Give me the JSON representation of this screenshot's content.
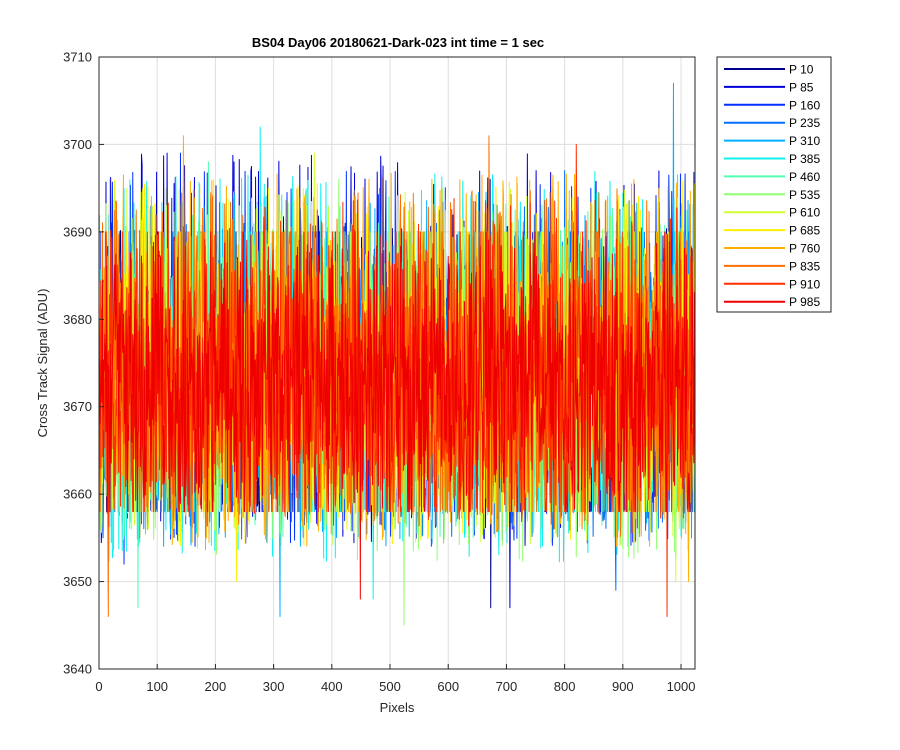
{
  "chart_data": {
    "type": "line",
    "title": "BS04 Day06 20180621-Dark-023 int time = 1 sec",
    "xlabel": "Pixels",
    "ylabel": "Cross Track Signal (ADU)",
    "xlim": [
      0,
      1024
    ],
    "ylim": [
      3640,
      3710
    ],
    "xticks": [
      0,
      100,
      200,
      300,
      400,
      500,
      600,
      700,
      800,
      900,
      1000
    ],
    "yticks": [
      3640,
      3650,
      3660,
      3670,
      3680,
      3690,
      3700,
      3710
    ],
    "grid": true,
    "legend_position": "outside-top-right",
    "noise": {
      "mean": 3673,
      "typical_low": 3658,
      "typical_high": 3690
    },
    "series": [
      {
        "name": "P 10",
        "color": "#00008f",
        "min": 3658,
        "max": 3692,
        "spike_hi": {
          "x": 672,
          "y": 3696
        },
        "spike_lo": {
          "x": 672,
          "y": 3647
        }
      },
      {
        "name": "P 85",
        "color": "#0000d9",
        "min": 3654,
        "max": 3699,
        "spike_hi": {
          "x": 117,
          "y": 3699
        },
        "spike_lo": {
          "x": 705,
          "y": 3647
        }
      },
      {
        "name": "P 160",
        "color": "#0030ff",
        "min": 3654,
        "max": 3697,
        "spike_hi": {
          "x": 140,
          "y": 3699
        },
        "spike_lo": {
          "x": 42,
          "y": 3652
        }
      },
      {
        "name": "P 235",
        "color": "#0070ff",
        "min": 3654,
        "max": 3693,
        "spike_hi": {
          "x": 800,
          "y": 3697
        },
        "spike_lo": {
          "x": 887,
          "y": 3649
        }
      },
      {
        "name": "P 310",
        "color": "#00b0ff",
        "min": 3654,
        "max": 3695,
        "spike_hi": {
          "x": 987,
          "y": 3707
        },
        "spike_lo": {
          "x": 310,
          "y": 3646
        }
      },
      {
        "name": "P 385",
        "color": "#10f0ef",
        "min": 3652,
        "max": 3697,
        "spike_hi": {
          "x": 277,
          "y": 3702
        },
        "spike_lo": {
          "x": 470,
          "y": 3648
        }
      },
      {
        "name": "P 460",
        "color": "#50ffaf",
        "min": 3655,
        "max": 3694,
        "spike_hi": {
          "x": 188,
          "y": 3698
        },
        "spike_lo": {
          "x": 66,
          "y": 3647
        }
      },
      {
        "name": "P 535",
        "color": "#90ff6f",
        "min": 3652,
        "max": 3694,
        "spike_hi": {
          "x": 412,
          "y": 3696
        },
        "spike_lo": {
          "x": 523,
          "y": 3645
        }
      },
      {
        "name": "P 610",
        "color": "#d0ff2f",
        "min": 3654,
        "max": 3695,
        "spike_hi": {
          "x": 370,
          "y": 3699
        },
        "spike_lo": {
          "x": 990,
          "y": 3650
        }
      },
      {
        "name": "P 685",
        "color": "#ffef00",
        "min": 3654,
        "max": 3696,
        "spike_hi": {
          "x": 18,
          "y": 3696
        },
        "spike_lo": {
          "x": 235,
          "y": 3650
        }
      },
      {
        "name": "P 760",
        "color": "#ffaf00",
        "min": 3654,
        "max": 3697,
        "spike_hi": {
          "x": 145,
          "y": 3701
        },
        "spike_lo": {
          "x": 1012,
          "y": 3650
        }
      },
      {
        "name": "P 835",
        "color": "#ff6f00",
        "min": 3655,
        "max": 3695,
        "spike_hi": {
          "x": 670,
          "y": 3701
        },
        "spike_lo": {
          "x": 15,
          "y": 3646
        }
      },
      {
        "name": "P 910",
        "color": "#ff2f00",
        "min": 3656,
        "max": 3694,
        "spike_hi": {
          "x": 820,
          "y": 3700
        },
        "spike_lo": {
          "x": 975,
          "y": 3646
        }
      },
      {
        "name": "P 985",
        "color": "#ef0000",
        "min": 3660,
        "max": 3690,
        "spike_hi": {
          "x": 440,
          "y": 3690
        },
        "spike_lo": {
          "x": 448,
          "y": 3648
        }
      }
    ]
  }
}
